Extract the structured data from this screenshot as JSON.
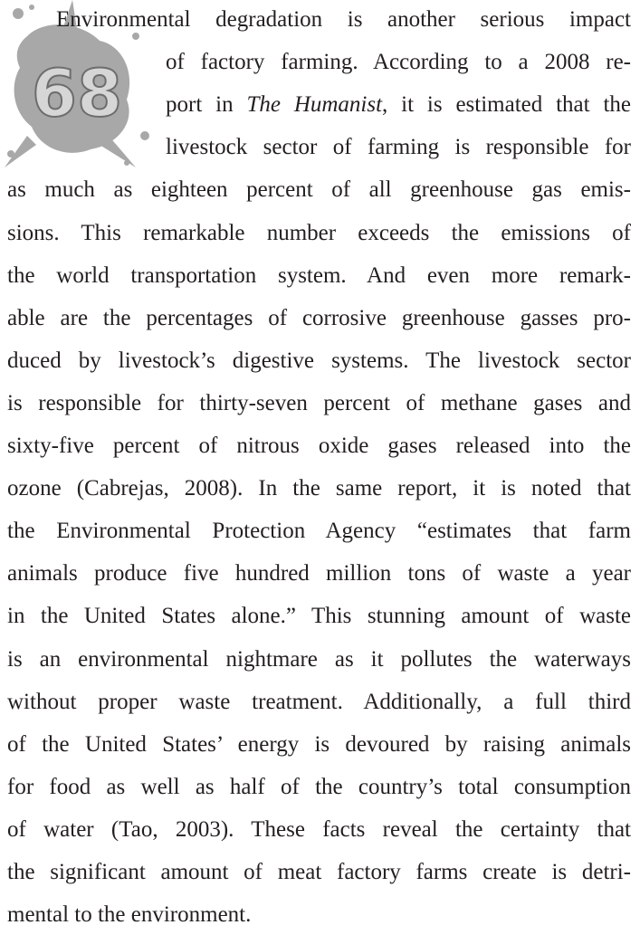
{
  "drop_number": "68",
  "paragraph": {
    "lines": [
      [
        "Environmental degradation is another serious impact"
      ],
      [
        "of factory farming. According to a 2008 re-"
      ],
      [
        "port in ",
        {
          "text": "The Humanist",
          "style": "italic"
        },
        ", it is estimated that the"
      ],
      [
        "livestock sector of farming is responsible for"
      ],
      [
        "as much as eighteen percent of all greenhouse gas emis-"
      ],
      [
        "sions.  This remarkable number exceeds the emissions of"
      ],
      [
        "the world transportation system. And even more remark-"
      ],
      [
        "able are the percentages of corrosive greenhouse gasses pro-"
      ],
      [
        "duced by livestock’s digestive systems. The livestock sector"
      ],
      [
        "is responsible for thirty-seven percent of methane gases and"
      ],
      [
        "sixty-five percent of nitrous oxide gases released into the"
      ],
      [
        "ozone (Cabrejas, 2008). In the same report, it is noted that"
      ],
      [
        "the Environmental Protection Agency “estimates that farm"
      ],
      [
        "animals produce five hundred million tons of waste a year"
      ],
      [
        "in the United States alone.” This stunning amount of waste"
      ],
      [
        "is an environmental nightmare as it pollutes the waterways"
      ],
      [
        "without proper waste treatment. Additionally, a full third"
      ],
      [
        "of the United States’ energy is devoured by raising animals"
      ],
      [
        "for food as well as half of the country’s total consumption"
      ],
      [
        "of water (Tao, 2003). These facts reveal the certainty that"
      ],
      [
        "the significant amount of meat factory farms create is detri-"
      ],
      [
        "mental to the environment."
      ]
    ]
  }
}
